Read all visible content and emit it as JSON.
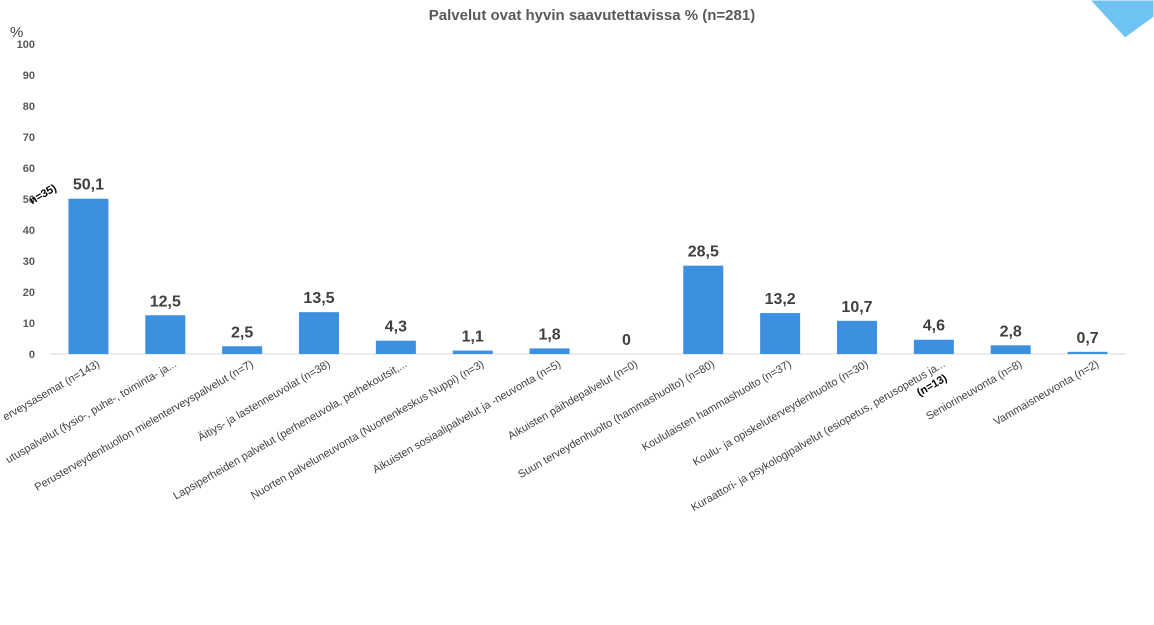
{
  "chart_data": {
    "type": "bar",
    "title": "Palvelut ovat hyvin saavutettavissa % (n=281)",
    "ylabel": "%",
    "xlabel": "",
    "ylim": [
      0,
      100
    ],
    "yticks": [
      0,
      10,
      20,
      30,
      40,
      50,
      60,
      70,
      80,
      90,
      100
    ],
    "grid": false,
    "legend": "none",
    "bar_color": "#3d8fe0",
    "axis_color": "#d9d9d9",
    "categories": [
      "erveysasemat (n=143)",
      "utuspalvelut (fysio-, puhe-, toiminta- ja...",
      "Perusterveydenhuollon mielenterveyspalvelut (n=7)",
      "Äitiys- ja lastenneuvolat (n=38)",
      "Lapsiperheiden palvelut (perheneuvola, perhekoutsit,...",
      "Nuorten palveluneuvonta (Nuortenkeskus Nuppi) (n=3)",
      "Aikuisten sosiaalipalvelut ja -neuvonta (n=5)",
      "Aikuisten päihdepalvelut (n=0)",
      "Suun terveydenhuolto (hammashuolto) (n=80)",
      "Koululaisten hammashuolto (n=37)",
      "Koulu- ja opiskeluterveydenhuolto (n=30)",
      "Kuraattori- ja psykologipalvelut (esiopetus, perusopetus ja...",
      "Seniorineuvonta (n=8)",
      "Vammaisneuvonta (n=2)"
    ],
    "values": [
      50.1,
      12.5,
      2.5,
      13.5,
      4.3,
      1.1,
      1.8,
      0,
      28.5,
      13.2,
      10.7,
      4.6,
      2.8,
      0.7
    ],
    "data_labels": [
      "50,1",
      "12,5",
      "2,5",
      "13,5",
      "4,3",
      "1,1",
      "1,8",
      "0",
      "28,5",
      "13,2",
      "10,7",
      "4,6",
      "2,8",
      "0,7"
    ],
    "overflow_labels": [
      "n=35)",
      "(n=13)"
    ]
  }
}
